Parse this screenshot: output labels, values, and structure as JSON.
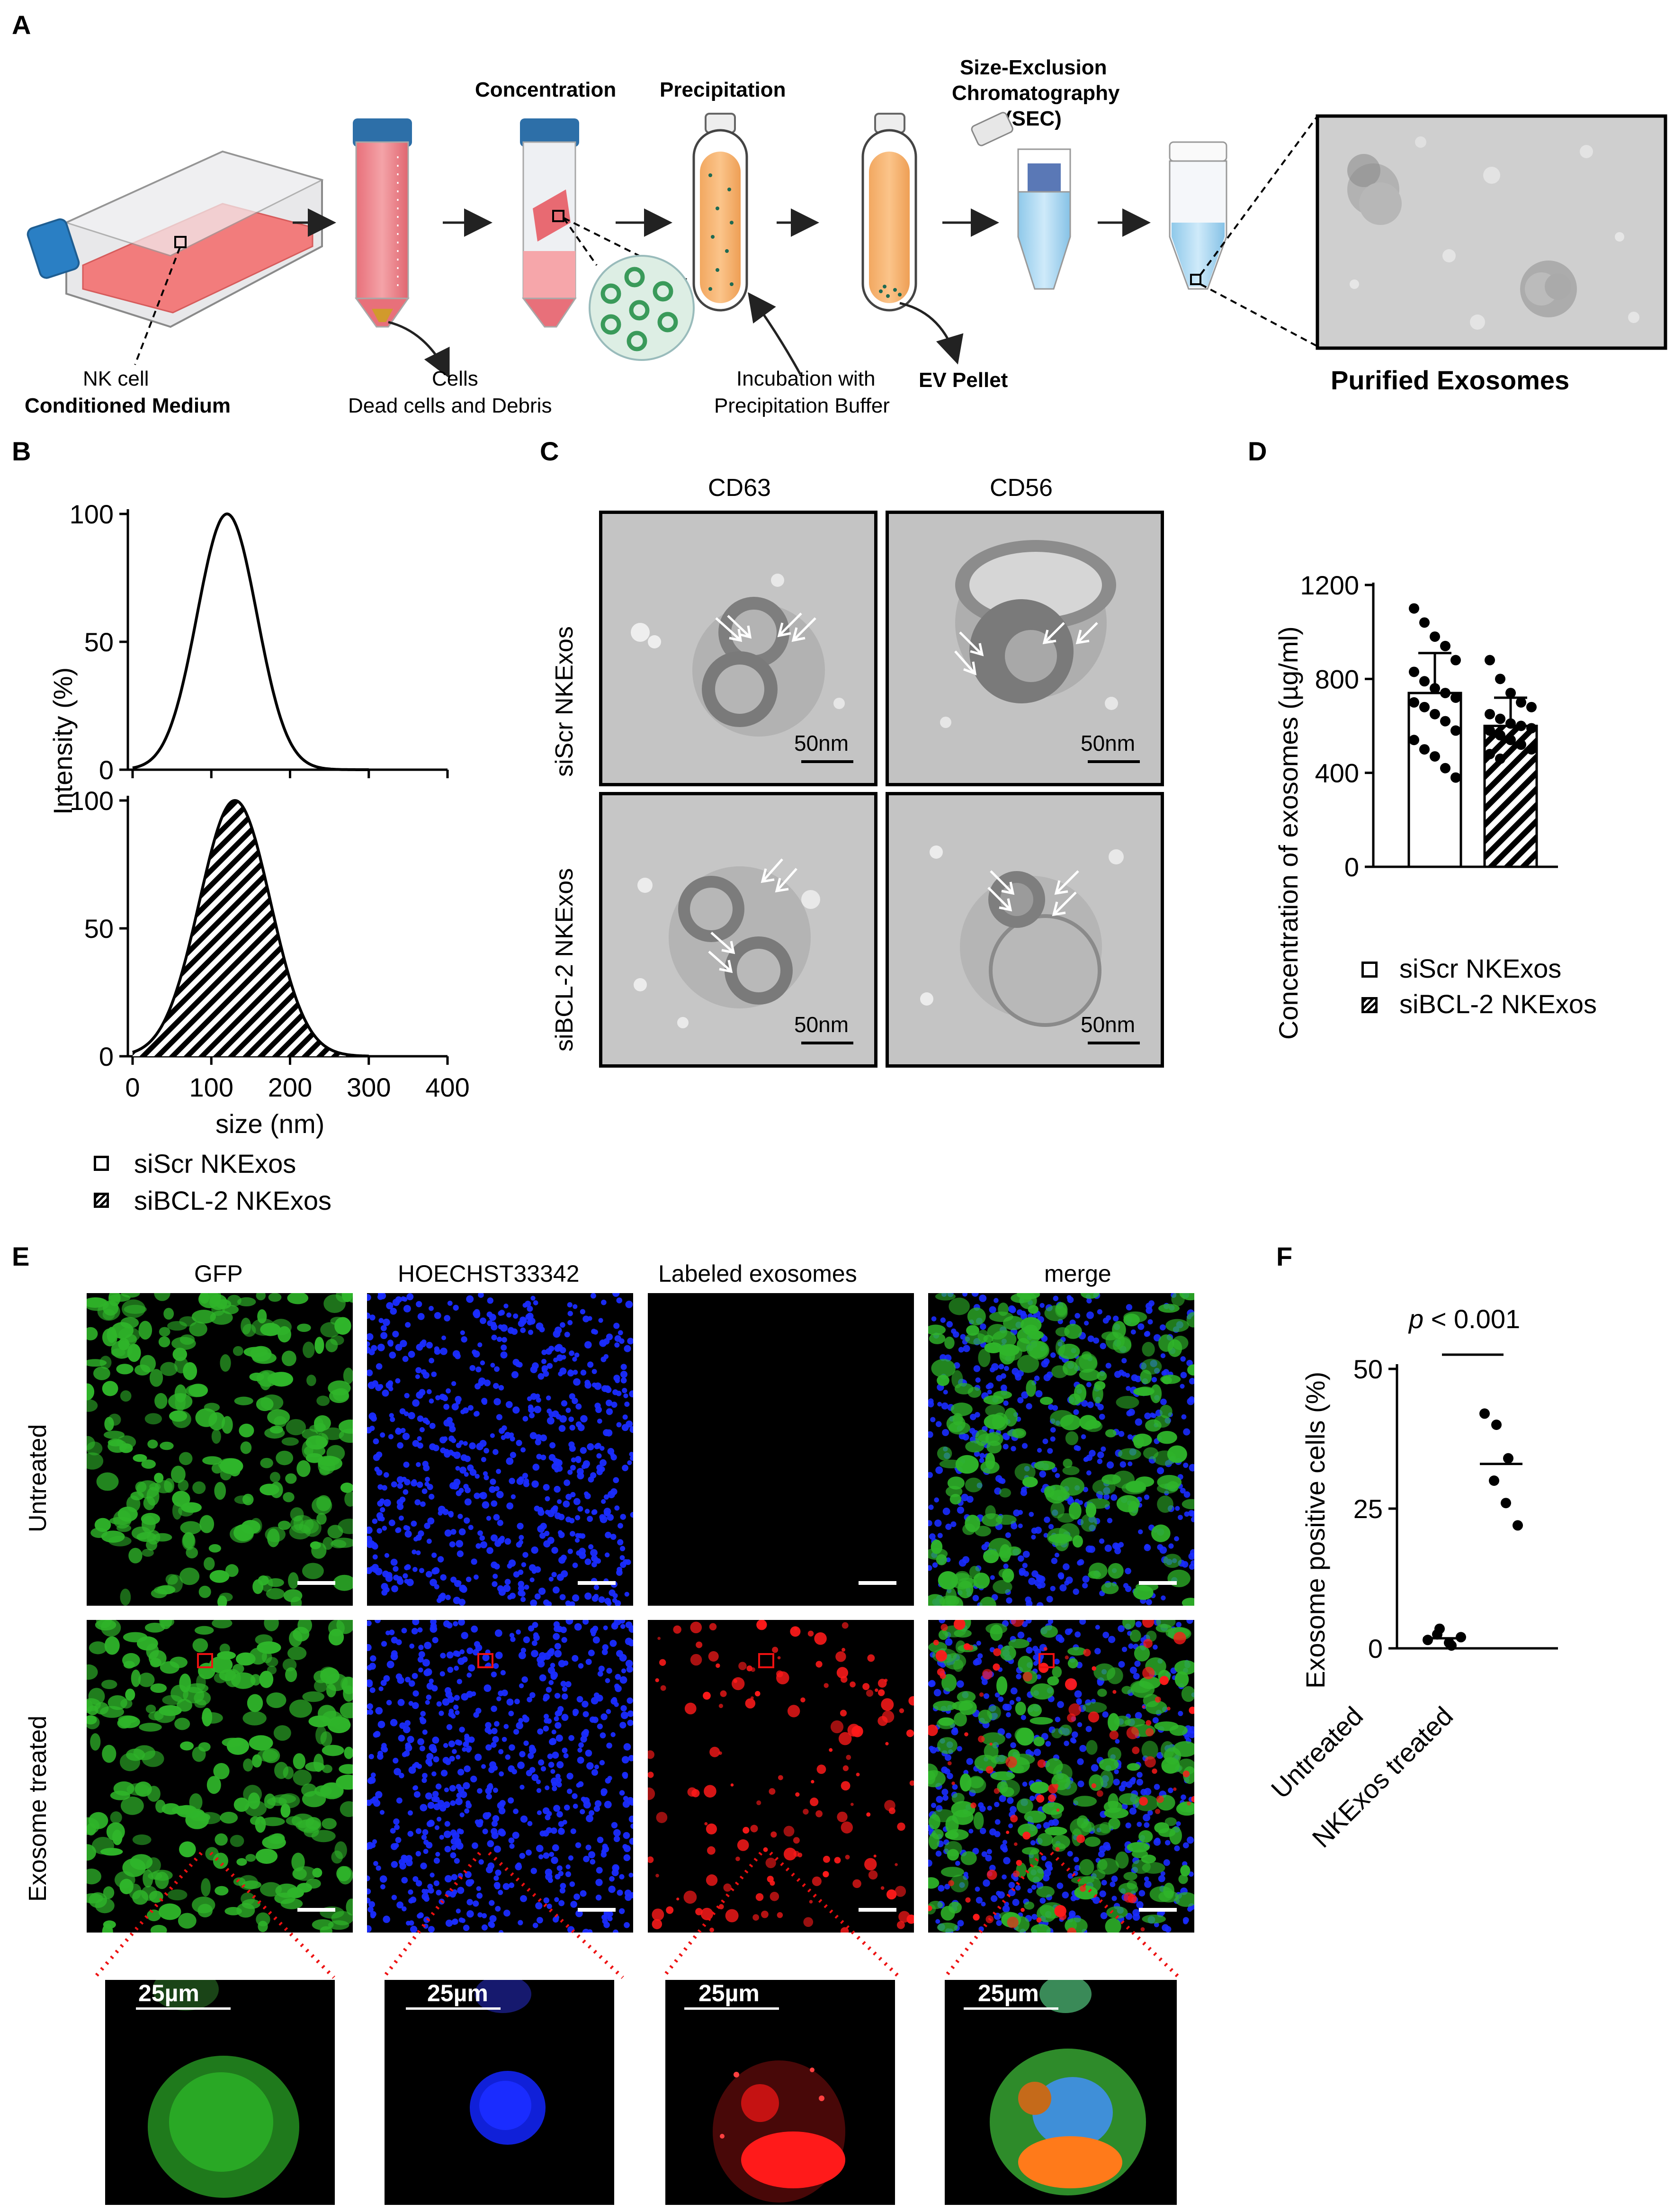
{
  "panels": {
    "A": {
      "letter": "A",
      "steps": {
        "concentration": "Concentration",
        "precipitation": "Precipitation",
        "sec": [
          "Size-Exclusion",
          "Chromatography",
          "(SEC)"
        ]
      },
      "labels": {
        "nk_line1": "NK cell",
        "nk_line2": "Conditioned Medium",
        "cells_line1": "Cells",
        "cells_line2": "Dead cells and Debris",
        "incub_line1": "Incubation with",
        "incub_line2": "Precipitation Buffer",
        "ev_pellet": "EV Pellet",
        "purified": "Purified Exosomes"
      }
    },
    "B": {
      "letter": "B",
      "ylabel": "Intensity (%)",
      "xlabel": "size (nm)",
      "legend": [
        "siScr NKExos",
        "siBCL-2 NKExos"
      ]
    },
    "C": {
      "letter": "C",
      "columns": [
        "CD63",
        "CD56"
      ],
      "rows": [
        "siScr NKExos",
        "siBCL-2 NKExos"
      ],
      "scale_label": "50nm"
    },
    "D": {
      "letter": "D",
      "ylabel": "Concentration of exosomes (µg/ml)",
      "legend": [
        "siScr NKExos",
        "siBCL-2 NKExos"
      ]
    },
    "E": {
      "letter": "E",
      "columns": [
        "GFP",
        "HOECHST33342",
        "Labeled exosomes",
        "merge"
      ],
      "rows": [
        "Untreated",
        "Exosome treated"
      ],
      "zoom_scale_label": "25µm",
      "colors": {
        "gfp": "#2fb52a",
        "hoechst": "#1a2cff",
        "exosome": "#ff1a1a"
      }
    },
    "F": {
      "letter": "F",
      "ylabel": "Exosome positive cells (%)",
      "pvalue_p": "p",
      "pvalue_rest": " < 0.001",
      "categories": [
        "Untreated",
        "NKExos treated"
      ]
    }
  },
  "chart_data": [
    {
      "type": "area",
      "panel": "B-top",
      "series": [
        {
          "name": "siScr NKExos",
          "peak_x": 120,
          "sd": 38
        }
      ],
      "x_ticks": [
        0,
        100,
        200,
        300,
        400
      ],
      "y_ticks": [
        0,
        50,
        100
      ],
      "xlim": [
        0,
        400
      ],
      "ylim": [
        0,
        100
      ],
      "xlabel": "size (nm)",
      "ylabel": "Intensity (%)",
      "grid": false
    },
    {
      "type": "area",
      "panel": "B-bottom",
      "series": [
        {
          "name": "siBCL-2 NKExos",
          "peak_x": 130,
          "sd": 45
        }
      ],
      "x_ticks": [
        0,
        100,
        200,
        300,
        400
      ],
      "y_ticks": [
        0,
        50,
        100
      ],
      "xlim": [
        0,
        400
      ],
      "ylim": [
        0,
        100
      ],
      "grid": false
    },
    {
      "type": "bar",
      "panel": "D",
      "categories": [
        "siScr NKExos",
        "siBCL-2 NKExos"
      ],
      "values": [
        740,
        600
      ],
      "sd": [
        170,
        120
      ],
      "points": [
        [
          1100,
          1040,
          980,
          940,
          880,
          830,
          790,
          760,
          740,
          720,
          700,
          680,
          650,
          620,
          580,
          540,
          500,
          470,
          420,
          380
        ],
        [
          880,
          800,
          740,
          700,
          680,
          650,
          630,
          610,
          600,
          590,
          580,
          560,
          540,
          520,
          500,
          480,
          460
        ]
      ],
      "y_ticks": [
        0,
        400,
        800,
        1200
      ],
      "ylim": [
        0,
        1200
      ],
      "ylabel": "Concentration of exosomes (µg/ml)",
      "legend": [
        "siScr NKExos",
        "siBCL-2 NKExos"
      ],
      "grid": false
    },
    {
      "type": "scatter",
      "panel": "F",
      "categories": [
        "Untreated",
        "NKExos treated"
      ],
      "points": [
        [
          1.5,
          3.5,
          0.5,
          2.5,
          1,
          2
        ],
        [
          42,
          40,
          34,
          30,
          26,
          22
        ]
      ],
      "medians": [
        1.8,
        33
      ],
      "y_ticks": [
        0,
        25,
        50
      ],
      "ylim": [
        0,
        50
      ],
      "ylabel": "Exosome positive cells (%)",
      "annotation": "p < 0.001",
      "grid": false
    }
  ]
}
